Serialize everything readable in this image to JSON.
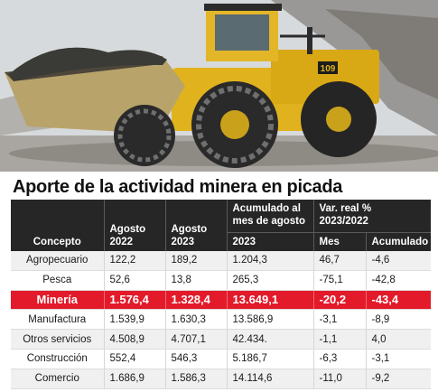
{
  "theme": {
    "header_bg": "#262626",
    "highlight_bg": "#e31a2a",
    "row_alt_bg": "#f0f0f0"
  },
  "photo": {
    "subject": "mining-wheel-loader",
    "machine_badge": "109"
  },
  "title": "Aporte de la actividad minera en picada",
  "chart_data": {
    "type": "table",
    "title": "Aporte de la actividad minera en picada",
    "headers": {
      "concept": "Concepto",
      "ago2022": [
        "Agosto",
        "2022"
      ],
      "ago2023": [
        "Agosto",
        "2023"
      ],
      "acum": [
        "Acumulado al",
        "mes de agosto",
        "2023"
      ],
      "var_group": [
        "Var. real %",
        "2023/2022"
      ],
      "mes": "Mes",
      "acumulado": "Acumulado"
    },
    "highlight_row": "Minería",
    "rows": [
      [
        "Agropecuario",
        "122,2",
        "189,2",
        "1.204,3",
        "46,7",
        "-4,6"
      ],
      [
        "Pesca",
        "52,6",
        "13,8",
        "265,3",
        "-75,1",
        "-42,8"
      ],
      [
        "Minería",
        "1.576,4",
        "1.328,4",
        "13.649,1",
        "-20,2",
        "-43,4"
      ],
      [
        "Manufactura",
        "1.539,9",
        "1.630,3",
        "13.586,9",
        "-3,1",
        "-8,9"
      ],
      [
        "Otros servicios",
        "4.508,9",
        "4.707,1",
        "42.434.",
        "-1,1",
        "4,0"
      ],
      [
        "Construcción",
        "552,4",
        "546,3",
        "5.186,7",
        "-6,3",
        "-3,1"
      ],
      [
        "Comercio",
        "1.686,9",
        "1.586,3",
        "14.114,6",
        "-11,0",
        "-9,2"
      ]
    ]
  }
}
